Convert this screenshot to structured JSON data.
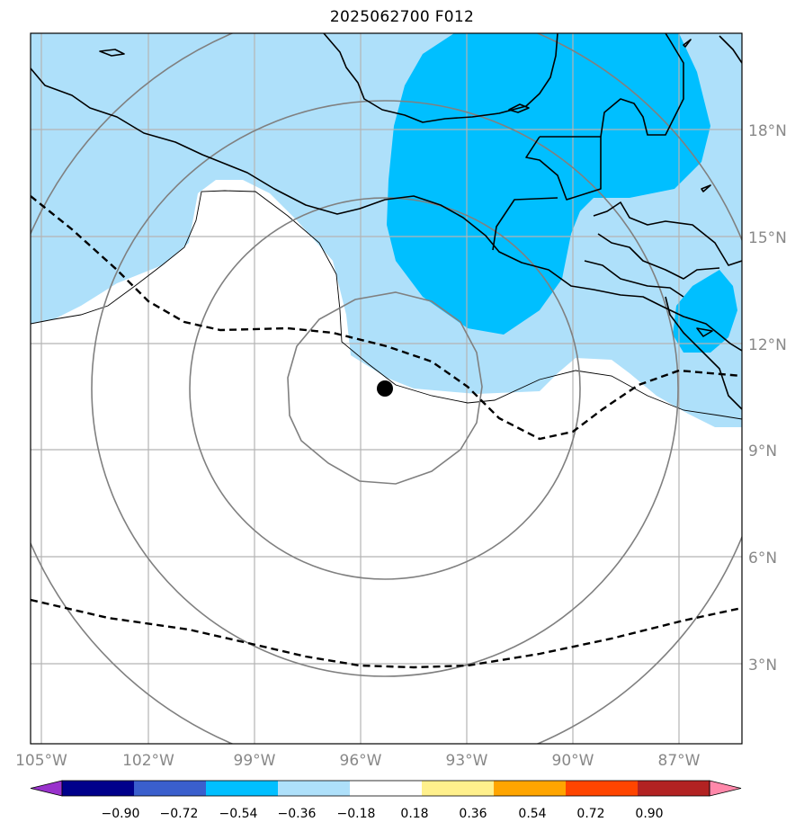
{
  "title": "2025062700 F012",
  "map": {
    "lat_labels": [
      "18°N",
      "15°N",
      "12°N",
      "9°N",
      "6°N",
      "3°N"
    ],
    "lon_labels": [
      "105°W",
      "102°W",
      "99°W",
      "96°W",
      "93°W",
      "90°W",
      "87°W"
    ],
    "extent": {
      "lon": [
        -105.3,
        -85.2
      ],
      "lat": [
        0.7,
        20.3
      ]
    },
    "storm_center": {
      "lon": -95.7,
      "lat": 10.7
    },
    "fill_colors": {
      "light": "#aee0fa",
      "medium": "#00bfff"
    }
  },
  "colorbar": {
    "labels": [
      "−0.90",
      "−0.72",
      "−0.54",
      "−0.36",
      "−0.18",
      "0.18",
      "0.36",
      "0.54",
      "0.72",
      "0.90"
    ],
    "colors": [
      "#9932cc",
      "#00008b",
      "#3a5fcd",
      "#00bfff",
      "#aee0fa",
      "#ffffff",
      "#fff08c",
      "#ffa500",
      "#ff4500",
      "#b22222",
      "#ff88aa"
    ]
  }
}
